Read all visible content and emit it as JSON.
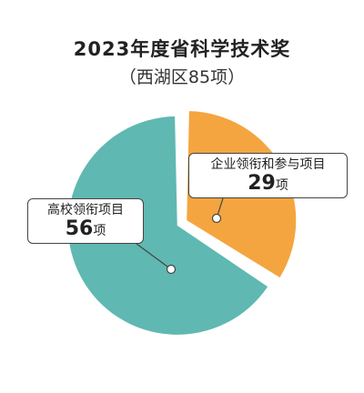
{
  "chart_data": {
    "type": "pie",
    "title": "2023年度省科学技术奖",
    "subtitle": "（西湖区85项）",
    "slices": [
      {
        "label": "企业领衔和参与项目",
        "value": 29,
        "unit": "项",
        "color": "#F4A540"
      },
      {
        "label": "高校领衔项目",
        "value": 56,
        "unit": "项",
        "color": "#5FB8B2"
      }
    ],
    "total": 85
  }
}
